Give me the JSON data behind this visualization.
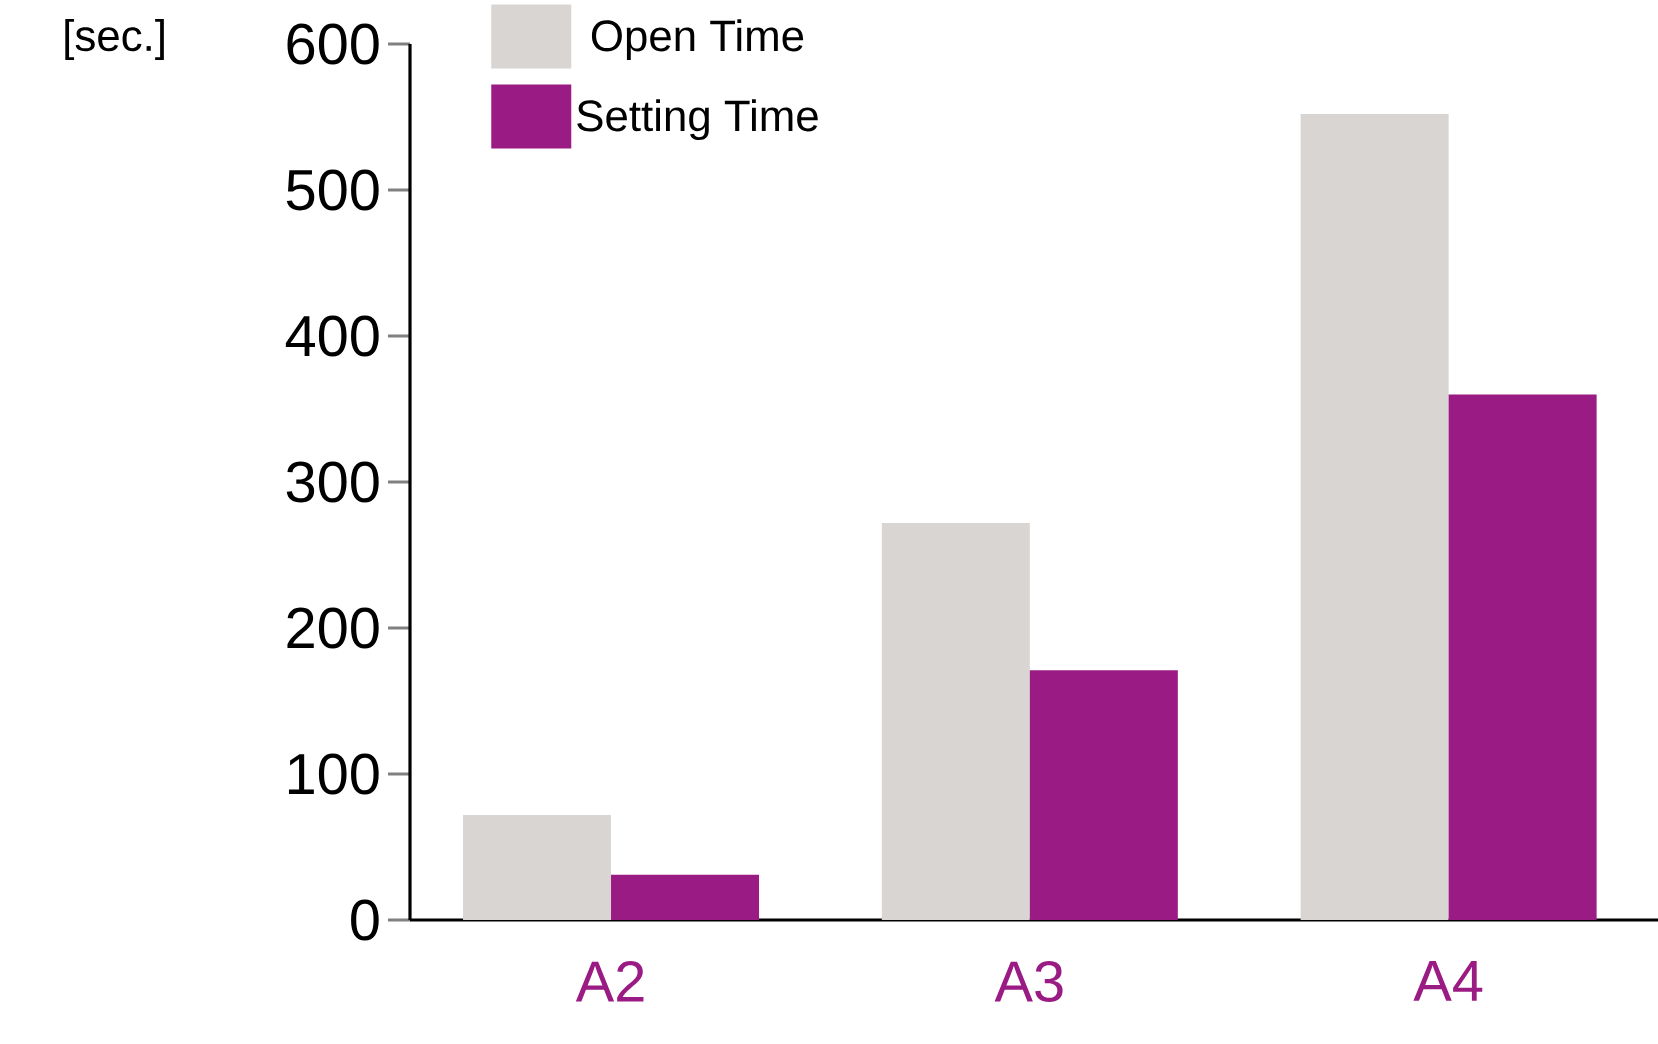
{
  "chart_data": {
    "type": "bar",
    "ylabel": "[sec.]",
    "categories": [
      "A2",
      "A3",
      "A4"
    ],
    "series": [
      {
        "name": "Open Time",
        "color": "#d9d5d3",
        "values": [
          72,
          272,
          552
        ]
      },
      {
        "name": "Setting Time",
        "color": "#9b1b84",
        "values": [
          31,
          171,
          360
        ]
      }
    ],
    "ylim": [
      0,
      600
    ],
    "yticks": [
      0,
      100,
      200,
      300,
      400,
      500,
      600
    ],
    "grid": false,
    "legend": "top"
  }
}
